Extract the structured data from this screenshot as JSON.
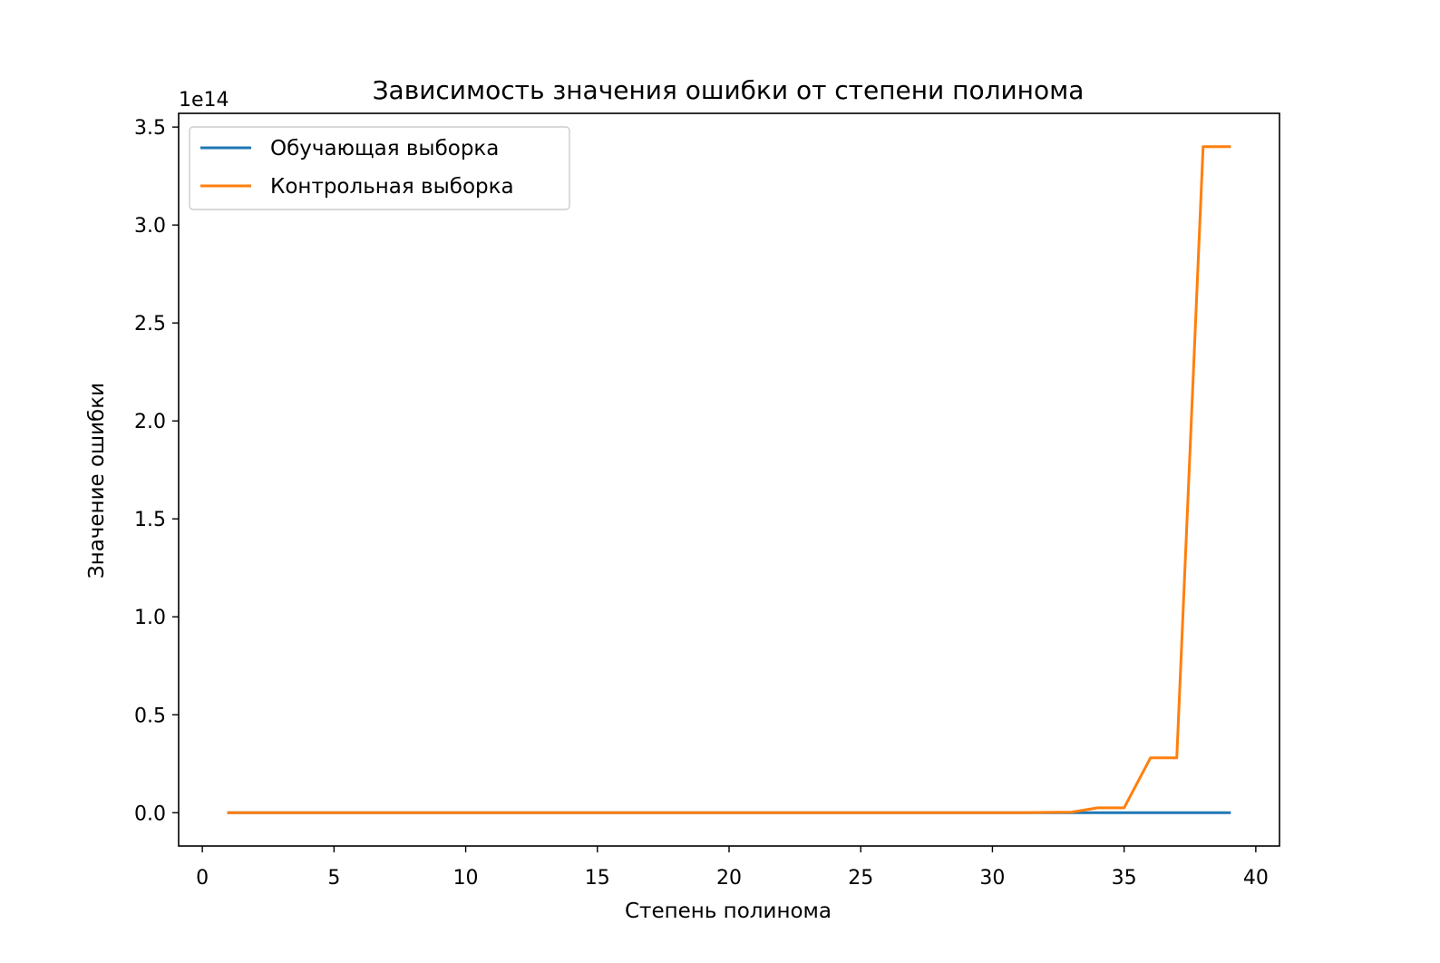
{
  "chart_data": {
    "type": "line",
    "title": "Зависимость значения ошибки от степени полинома",
    "xlabel": "Степень полинома",
    "ylabel": "Значение ошибки",
    "y_offset_label": "1e14",
    "y_scale": 100000000000000.0,
    "xlim": [
      -0.9,
      40.9
    ],
    "ylim": [
      -0.17,
      3.57
    ],
    "x_ticks": [
      0,
      5,
      10,
      15,
      20,
      25,
      30,
      35,
      40
    ],
    "x_tick_labels": [
      "0",
      "5",
      "10",
      "15",
      "20",
      "25",
      "30",
      "35",
      "40"
    ],
    "y_ticks": [
      0.0,
      0.5,
      1.0,
      1.5,
      2.0,
      2.5,
      3.0,
      3.5
    ],
    "y_tick_labels": [
      "0.0",
      "0.5",
      "1.0",
      "1.5",
      "2.0",
      "2.5",
      "3.0",
      "3.5"
    ],
    "grid": false,
    "legend_position": "top-left",
    "series": [
      {
        "name": "Обучающая выборка",
        "color": "#1f77b4",
        "x": [
          1,
          2,
          3,
          4,
          5,
          6,
          7,
          8,
          9,
          10,
          11,
          12,
          13,
          14,
          15,
          16,
          17,
          18,
          19,
          20,
          21,
          22,
          23,
          24,
          25,
          26,
          27,
          28,
          29,
          30,
          31,
          32,
          33,
          34,
          35,
          36,
          37,
          38,
          39
        ],
        "values": [
          0,
          0,
          0,
          0,
          0,
          0,
          0,
          0,
          0,
          0,
          0,
          0,
          0,
          0,
          0,
          0,
          0,
          0,
          0,
          0,
          0,
          0,
          0,
          0,
          0,
          0,
          0,
          0,
          0,
          0,
          0,
          0,
          0,
          0,
          0,
          0,
          0,
          0,
          0
        ]
      },
      {
        "name": "Контрольная выборка",
        "color": "#ff7f0e",
        "x": [
          1,
          2,
          3,
          4,
          5,
          6,
          7,
          8,
          9,
          10,
          11,
          12,
          13,
          14,
          15,
          16,
          17,
          18,
          19,
          20,
          21,
          22,
          23,
          24,
          25,
          26,
          27,
          28,
          29,
          30,
          31,
          32,
          33,
          34,
          35,
          36,
          37,
          38,
          39
        ],
        "values": [
          0,
          0,
          0,
          0,
          0,
          0,
          0,
          0,
          0,
          0,
          0,
          0,
          0,
          0,
          0,
          0,
          0,
          0,
          0,
          0,
          0,
          0,
          0,
          0,
          0,
          0,
          0,
          0,
          0,
          0,
          0,
          0.002,
          0.003,
          0.025,
          0.025,
          0.28,
          0.28,
          3.4,
          3.4
        ]
      }
    ]
  }
}
